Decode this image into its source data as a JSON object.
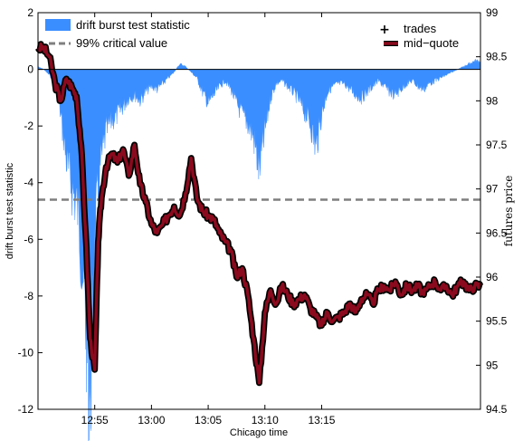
{
  "chart_data": {
    "type": "area+line",
    "xlabel": "Chicago time",
    "ylabel_left": "drift burst test statistic",
    "ylabel_right": "futures price",
    "x_range_minutes": [
      0,
      39
    ],
    "x_ticks": [
      {
        "t": 5,
        "label": "12:55"
      },
      {
        "t": 10,
        "label": "13:00"
      },
      {
        "t": 15,
        "label": "13:05"
      },
      {
        "t": 20,
        "label": "13:10"
      },
      {
        "t": 25,
        "label": "13:15"
      }
    ],
    "ylim_left": [
      -12,
      2
    ],
    "yticks_left": [
      "2",
      "0",
      "-2",
      "-4",
      "-6",
      "-8",
      "-10",
      "-12"
    ],
    "ylim_right": [
      94.5,
      99
    ],
    "yticks_right": [
      "99",
      "98.5",
      "98",
      "97.5",
      "97",
      "96.5",
      "96",
      "95.5",
      "95",
      "94.5"
    ],
    "grid": false,
    "colors": {
      "stat_fill": "#3b8eff",
      "critical": "#7f7f7f",
      "mid_quote": "#8b0a1e",
      "trades": "#000000"
    },
    "critical_value": -4.6,
    "legend_left": [
      {
        "label": "drift burst test statistic",
        "style": "fill"
      },
      {
        "label": "99% critical value",
        "style": "dashed"
      }
    ],
    "legend_right": [
      {
        "label": "trades",
        "style": "marker"
      },
      {
        "label": "mid−quote",
        "style": "line"
      }
    ],
    "test_statistic": {
      "t": [
        0,
        0.5,
        1,
        1.5,
        2,
        2.5,
        3,
        3.5,
        4,
        4.3,
        4.6,
        5,
        5.5,
        6,
        6.5,
        7,
        7.5,
        8,
        8.5,
        9,
        9.5,
        10,
        10.5,
        11,
        11.5,
        12,
        12.5,
        13,
        13.5,
        14,
        14.5,
        15,
        15.5,
        16,
        16.5,
        17,
        17.5,
        18,
        18.5,
        19,
        19.5,
        20,
        20.5,
        21,
        21.5,
        22,
        22.5,
        23,
        23.5,
        24,
        24.5,
        25,
        25.5,
        26,
        26.5,
        27,
        27.5,
        28,
        28.5,
        29,
        29.5,
        30,
        30.5,
        31,
        31.5,
        32,
        32.5,
        33,
        33.5,
        34,
        34.5,
        35,
        35.5,
        36,
        36.5,
        37,
        37.5,
        38,
        38.5,
        39
      ],
      "values": [
        0.1,
        0.0,
        -0.2,
        -0.4,
        -1.6,
        -3.2,
        -4.2,
        -4.9,
        -7.3,
        -9.5,
        -11.7,
        -6.0,
        -3.4,
        -2.2,
        -1.8,
        -1.6,
        -1.3,
        -1.0,
        -0.9,
        -1.1,
        -0.8,
        -0.6,
        -0.7,
        -0.5,
        -0.3,
        -0.1,
        0.2,
        0.1,
        -0.1,
        -0.3,
        -0.8,
        -1.2,
        -0.9,
        -0.6,
        -0.4,
        -0.7,
        -1.2,
        -1.6,
        -1.9,
        -2.4,
        -3.6,
        -2.2,
        -1.0,
        -0.5,
        -0.4,
        -0.6,
        -0.8,
        -1.1,
        -1.5,
        -1.9,
        -2.8,
        -1.6,
        -0.8,
        -0.6,
        -0.5,
        -0.5,
        -0.7,
        -0.9,
        -1.0,
        -0.8,
        -0.6,
        -0.4,
        -0.6,
        -0.8,
        -0.9,
        -0.7,
        -0.5,
        -0.4,
        -0.6,
        -0.7,
        -0.5,
        -0.4,
        -0.3,
        -0.2,
        -0.1,
        0.0,
        0.1,
        0.2,
        0.3,
        0.3
      ]
    },
    "mid_quote": {
      "t": [
        0,
        0.5,
        1,
        1.5,
        2,
        2.5,
        3,
        3.4,
        3.8,
        4.2,
        4.6,
        5,
        5.3,
        5.6,
        6,
        6.5,
        7,
        7.5,
        8,
        8.5,
        9,
        9.5,
        10,
        10.5,
        11,
        11.5,
        12,
        12.5,
        13,
        13.5,
        14,
        14.5,
        15,
        15.5,
        16,
        16.5,
        17,
        17.5,
        18,
        18.5,
        19,
        19.5,
        20,
        20.5,
        21,
        21.5,
        22,
        22.5,
        23,
        23.5,
        24,
        24.5,
        25,
        25.5,
        26,
        26.5,
        27,
        27.5,
        28,
        28.5,
        29,
        29.5,
        30,
        30.5,
        31,
        31.5,
        32,
        32.5,
        33,
        33.5,
        34,
        34.5,
        35,
        35.5,
        36,
        36.5,
        37,
        37.5,
        38,
        38.5,
        39
      ],
      "values": [
        98.6,
        98.6,
        98.5,
        98.2,
        98.0,
        98.25,
        98.15,
        98.05,
        97.5,
        96.5,
        95.3,
        94.95,
        96.4,
        96.9,
        97.25,
        97.4,
        97.3,
        97.45,
        97.15,
        97.5,
        97.05,
        96.85,
        96.6,
        96.5,
        96.6,
        96.7,
        96.8,
        96.7,
        96.95,
        97.35,
        96.9,
        96.75,
        96.7,
        96.65,
        96.5,
        96.4,
        96.3,
        96.0,
        96.1,
        95.8,
        95.3,
        94.8,
        95.6,
        95.85,
        95.7,
        95.9,
        95.8,
        95.7,
        95.75,
        95.8,
        95.65,
        95.55,
        95.45,
        95.6,
        95.5,
        95.55,
        95.6,
        95.7,
        95.6,
        95.75,
        95.8,
        95.7,
        95.85,
        95.9,
        95.85,
        95.95,
        95.8,
        95.9,
        95.85,
        95.9,
        95.8,
        95.9,
        95.95,
        95.85,
        95.9,
        95.8,
        95.9,
        95.95,
        95.85,
        95.9,
        95.9
      ]
    }
  }
}
